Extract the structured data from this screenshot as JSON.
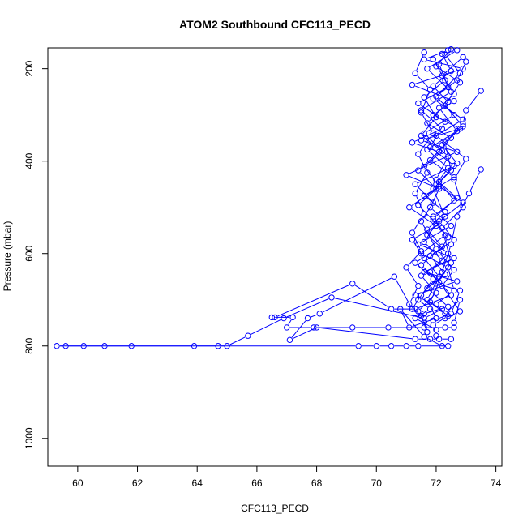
{
  "chart_data": {
    "type": "scatter",
    "title": "ATOM2 Southbound CFC113_PECD",
    "xlabel": "CFC113_PECD",
    "ylabel": "Pressure (mbar)",
    "xlim": [
      59,
      74.2
    ],
    "ylim": [
      1060,
      155
    ],
    "y_reversed": true,
    "xticks": [
      60,
      62,
      64,
      66,
      68,
      70,
      72,
      74
    ],
    "yticks": [
      200,
      400,
      600,
      800,
      1000
    ],
    "grid": false,
    "legend": "none",
    "marker": "open-circle",
    "connected": true,
    "color": "#0000ff",
    "series": [
      {
        "points": [
          [
            72.4,
            160
          ],
          [
            71.6,
            180
          ],
          [
            72.9,
            200
          ],
          [
            71.2,
            235
          ],
          [
            72.6,
            270
          ],
          [
            71.9,
            300
          ],
          [
            72.8,
            330
          ],
          [
            71.5,
            355
          ],
          [
            72.7,
            380
          ],
          [
            71.0,
            430
          ],
          [
            72.1,
            460
          ],
          [
            71.8,
            500
          ],
          [
            72.5,
            540
          ],
          [
            71.4,
            580
          ],
          [
            72.6,
            610
          ],
          [
            71.6,
            640
          ],
          [
            72.7,
            660
          ],
          [
            71.3,
            690
          ],
          [
            72.2,
            720
          ],
          [
            71.6,
            740
          ],
          [
            68.5,
            695
          ],
          [
            66.9,
            740
          ],
          [
            65.7,
            778
          ],
          [
            65.0,
            800
          ],
          [
            59.3,
            800
          ],
          [
            59.6,
            800
          ],
          [
            60.2,
            800
          ],
          [
            60.9,
            800
          ],
          [
            61.8,
            800
          ],
          [
            63.9,
            800
          ],
          [
            64.7,
            800
          ],
          [
            69.4,
            800
          ],
          [
            70.0,
            800
          ],
          [
            70.5,
            800
          ],
          [
            71.0,
            800
          ],
          [
            71.4,
            800
          ],
          [
            72.4,
            800
          ]
        ]
      },
      {
        "points": [
          [
            73.5,
            248
          ],
          [
            73.0,
            290
          ],
          [
            72.9,
            320
          ],
          [
            72.3,
            360
          ],
          [
            72.5,
            420
          ],
          [
            71.9,
            460
          ],
          [
            72.3,
            520
          ],
          [
            71.7,
            560
          ],
          [
            72.4,
            600
          ],
          [
            71.8,
            640
          ],
          [
            72.5,
            690
          ],
          [
            71.3,
            720
          ],
          [
            70.5,
            720
          ],
          [
            69.2,
            665
          ],
          [
            66.6,
            738
          ],
          [
            66.5,
            738
          ],
          [
            67.2,
            738
          ],
          [
            67.0,
            760
          ],
          [
            67.9,
            760
          ],
          [
            69.2,
            760
          ],
          [
            70.4,
            760
          ],
          [
            71.6,
            760
          ],
          [
            72.3,
            760
          ],
          [
            72.6,
            760
          ]
        ]
      },
      {
        "points": [
          [
            73.5,
            418
          ],
          [
            73.1,
            470
          ],
          [
            72.7,
            520
          ],
          [
            72.5,
            580
          ],
          [
            72.2,
            640
          ],
          [
            71.5,
            690
          ],
          [
            71.2,
            720
          ],
          [
            70.6,
            650
          ],
          [
            68.1,
            730
          ],
          [
            67.7,
            740
          ],
          [
            67.1,
            787
          ],
          [
            68.0,
            760
          ],
          [
            71.3,
            785
          ],
          [
            71.8,
            785
          ],
          [
            72.1,
            785
          ],
          [
            72.5,
            785
          ]
        ]
      },
      {
        "points": [
          [
            72.7,
            160
          ],
          [
            71.7,
            200
          ],
          [
            72.5,
            250
          ],
          [
            71.5,
            290
          ],
          [
            72.2,
            330
          ],
          [
            71.2,
            360
          ],
          [
            72.1,
            380
          ],
          [
            71.4,
            420
          ],
          [
            72.0,
            460
          ],
          [
            71.1,
            500
          ],
          [
            72.0,
            540
          ],
          [
            71.2,
            570
          ],
          [
            71.6,
            610
          ],
          [
            72.1,
            650
          ],
          [
            71.7,
            700
          ],
          [
            72.0,
            740
          ],
          [
            71.1,
            760
          ],
          [
            70.8,
            720
          ],
          [
            71.6,
            780
          ],
          [
            72.2,
            800
          ]
        ]
      },
      {
        "points": [
          [
            72.3,
            170
          ],
          [
            72.8,
            210
          ],
          [
            72.0,
            260
          ],
          [
            72.6,
            300
          ],
          [
            71.6,
            340
          ],
          [
            72.4,
            390
          ],
          [
            72.0,
            440
          ],
          [
            72.7,
            480
          ],
          [
            71.9,
            520
          ],
          [
            72.3,
            560
          ],
          [
            71.5,
            600
          ],
          [
            72.4,
            630
          ],
          [
            72.6,
            680
          ],
          [
            72.0,
            710
          ],
          [
            72.3,
            730
          ],
          [
            72.8,
            700
          ],
          [
            72.6,
            750
          ]
        ]
      },
      {
        "points": [
          [
            73.0,
            185
          ],
          [
            72.7,
            225
          ],
          [
            71.9,
            265
          ],
          [
            72.9,
            310
          ],
          [
            72.0,
            345
          ],
          [
            73.0,
            395
          ],
          [
            72.6,
            440
          ],
          [
            72.9,
            500
          ],
          [
            72.2,
            545
          ],
          [
            72.5,
            620
          ],
          [
            72.0,
            665
          ],
          [
            72.8,
            680
          ],
          [
            72.5,
            730
          ],
          [
            71.9,
            745
          ]
        ]
      },
      {
        "points": [
          [
            72.1,
            190
          ],
          [
            72.4,
            240
          ],
          [
            71.4,
            275
          ],
          [
            72.3,
            315
          ],
          [
            71.8,
            370
          ],
          [
            72.6,
            410
          ],
          [
            71.3,
            450
          ],
          [
            71.9,
            490
          ],
          [
            71.5,
            530
          ],
          [
            72.0,
            590
          ],
          [
            71.3,
            620
          ],
          [
            71.9,
            655
          ],
          [
            71.4,
            700
          ],
          [
            71.8,
            720
          ],
          [
            71.3,
            740
          ],
          [
            72.0,
            765
          ]
        ]
      },
      {
        "points": [
          [
            72.9,
            175
          ],
          [
            72.2,
            215
          ],
          [
            72.6,
            255
          ],
          [
            72.1,
            285
          ],
          [
            72.7,
            335
          ],
          [
            71.7,
            375
          ],
          [
            72.4,
            415
          ],
          [
            72.0,
            450
          ],
          [
            72.9,
            490
          ],
          [
            72.1,
            530
          ],
          [
            72.6,
            570
          ],
          [
            71.8,
            605
          ],
          [
            72.3,
            645
          ],
          [
            71.7,
            675
          ],
          [
            72.4,
            715
          ],
          [
            71.6,
            730
          ]
        ]
      },
      {
        "points": [
          [
            72.5,
            158
          ],
          [
            72.0,
            195
          ],
          [
            72.8,
            230
          ],
          [
            72.3,
            280
          ],
          [
            72.9,
            325
          ],
          [
            72.2,
            365
          ],
          [
            72.7,
            405
          ],
          [
            72.1,
            445
          ],
          [
            72.6,
            485
          ],
          [
            71.9,
            525
          ],
          [
            72.4,
            565
          ],
          [
            72.1,
            598
          ],
          [
            72.6,
            635
          ],
          [
            72.2,
            670
          ],
          [
            72.8,
            725
          ],
          [
            72.3,
            740
          ]
        ]
      },
      {
        "points": [
          [
            71.6,
            165
          ],
          [
            71.3,
            210
          ],
          [
            71.8,
            245
          ],
          [
            71.5,
            295
          ],
          [
            71.9,
            340
          ],
          [
            71.4,
            385
          ],
          [
            71.7,
            425
          ],
          [
            71.3,
            470
          ],
          [
            71.6,
            515
          ],
          [
            71.2,
            555
          ],
          [
            71.5,
            595
          ],
          [
            71.0,
            630
          ],
          [
            71.4,
            670
          ],
          [
            71.1,
            710
          ],
          [
            71.5,
            735
          ],
          [
            71.7,
            770
          ]
        ]
      },
      {
        "points": [
          [
            72.2,
            168
          ],
          [
            72.5,
            205
          ],
          [
            71.9,
            238
          ],
          [
            72.4,
            272
          ],
          [
            71.7,
            318
          ],
          [
            72.5,
            350
          ],
          [
            71.8,
            398
          ],
          [
            72.6,
            435
          ],
          [
            71.6,
            475
          ],
          [
            72.3,
            510
          ],
          [
            71.7,
            548
          ],
          [
            72.2,
            585
          ],
          [
            71.5,
            625
          ],
          [
            72.1,
            662
          ],
          [
            71.8,
            705
          ],
          [
            72.4,
            735
          ],
          [
            71.9,
            755
          ],
          [
            72.0,
            778
          ]
        ]
      },
      {
        "points": [
          [
            71.9,
            180
          ],
          [
            72.3,
            225
          ],
          [
            71.6,
            262
          ],
          [
            72.0,
            305
          ],
          [
            71.5,
            345
          ],
          [
            72.2,
            378
          ],
          [
            71.6,
            412
          ],
          [
            72.1,
            455
          ],
          [
            71.4,
            495
          ],
          [
            72.0,
            535
          ],
          [
            71.6,
            575
          ],
          [
            72.2,
            615
          ],
          [
            71.5,
            648
          ],
          [
            72.0,
            685
          ],
          [
            71.4,
            725
          ],
          [
            71.6,
            748
          ]
        ]
      }
    ]
  }
}
